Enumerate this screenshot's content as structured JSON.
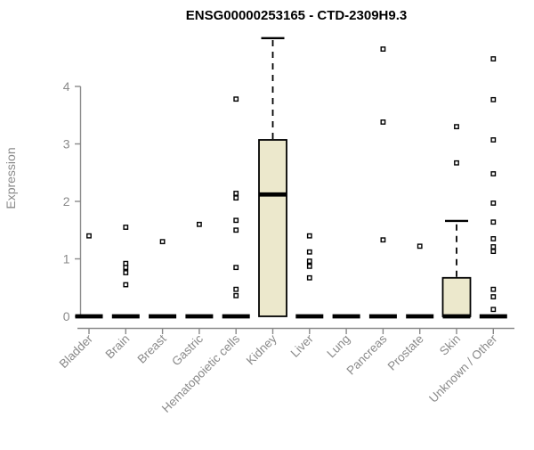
{
  "title": "ENSG00000253165 - CTD-2309H9.3",
  "chart_data": {
    "type": "boxplot",
    "title": "ENSG00000253165 - CTD-2309H9.3",
    "xlabel": "",
    "ylabel": "Expression",
    "ylim": [
      0,
      4.9
    ],
    "yticks": [
      0,
      1,
      2,
      3,
      4
    ],
    "grid": false,
    "legend": "none",
    "categories": [
      "Bladder",
      "Brain",
      "Breast",
      "Gastric",
      "Hematopoietic cells",
      "Kidney",
      "Liver",
      "Lung",
      "Pancreas",
      "Prostate",
      "Skin",
      "Unknown / Other"
    ],
    "boxes": [
      {
        "category": "Bladder",
        "q1": 0,
        "median": 0,
        "q3": 0,
        "whisker_low": 0,
        "whisker_high": 0,
        "outliers": [
          1.4
        ]
      },
      {
        "category": "Brain",
        "q1": 0,
        "median": 0,
        "q3": 0,
        "whisker_low": 0,
        "whisker_high": 0,
        "outliers": [
          1.55,
          0.92,
          0.85,
          0.76,
          0.55
        ]
      },
      {
        "category": "Breast",
        "q1": 0,
        "median": 0,
        "q3": 0,
        "whisker_low": 0,
        "whisker_high": 0,
        "outliers": [
          1.3
        ]
      },
      {
        "category": "Gastric",
        "q1": 0,
        "median": 0,
        "q3": 0,
        "whisker_low": 0,
        "whisker_high": 0,
        "outliers": [
          1.6
        ]
      },
      {
        "category": "Hematopoietic cells",
        "q1": 0,
        "median": 0,
        "q3": 0,
        "whisker_low": 0,
        "whisker_high": 0,
        "outliers": [
          3.78,
          2.14,
          2.06,
          1.67,
          1.5,
          0.85,
          0.47,
          0.36
        ]
      },
      {
        "category": "Kidney",
        "q1": 0,
        "median": 2.12,
        "q3": 3.07,
        "whisker_low": 0,
        "whisker_high": 4.84,
        "outliers": []
      },
      {
        "category": "Liver",
        "q1": 0,
        "median": 0,
        "q3": 0,
        "whisker_low": 0,
        "whisker_high": 0,
        "outliers": [
          1.4,
          1.12,
          0.96,
          0.87,
          0.67
        ]
      },
      {
        "category": "Lung",
        "q1": 0,
        "median": 0,
        "q3": 0,
        "whisker_low": 0,
        "whisker_high": 0,
        "outliers": []
      },
      {
        "category": "Pancreas",
        "q1": 0,
        "median": 0,
        "q3": 0,
        "whisker_low": 0,
        "whisker_high": 0,
        "outliers": [
          4.65,
          3.38,
          1.33
        ]
      },
      {
        "category": "Prostate",
        "q1": 0,
        "median": 0,
        "q3": 0,
        "whisker_low": 0,
        "whisker_high": 0,
        "outliers": [
          1.22
        ]
      },
      {
        "category": "Skin",
        "q1": 0,
        "median": 0,
        "q3": 0.67,
        "whisker_low": 0,
        "whisker_high": 1.66,
        "outliers": [
          3.3,
          2.67
        ]
      },
      {
        "category": "Unknown / Other",
        "q1": 0,
        "median": 0,
        "q3": 0,
        "whisker_low": 0,
        "whisker_high": 0,
        "outliers": [
          4.48,
          3.77,
          3.07,
          2.48,
          1.97,
          1.64,
          1.35,
          1.21,
          1.13,
          0.47,
          0.34,
          0.12
        ]
      }
    ],
    "colors": {
      "box_fill": "#ECE8CC",
      "box_border": "#000000",
      "median": "#000000",
      "whisker": "#000000",
      "outlier_stroke": "#000000",
      "outlier_fill": "#FFFFFF",
      "axis": "#8a8a8a",
      "tick_label": "#8a8a8a",
      "title": "#000000",
      "background": "#FFFFFF"
    }
  }
}
